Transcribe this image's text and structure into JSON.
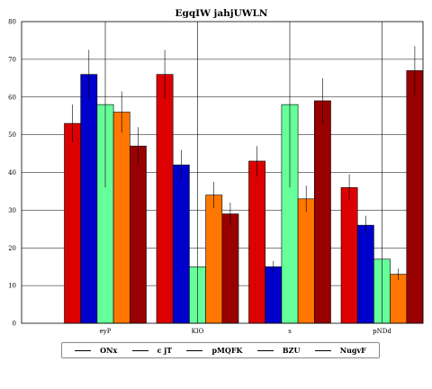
{
  "chart_data": {
    "type": "bar",
    "title": "EgqIW jahjUWLN",
    "xlabel": "",
    "ylabel": "",
    "categories": [
      "eyP",
      "KIO",
      "s",
      "pNDd"
    ],
    "ylim": [
      0,
      80
    ],
    "yticks": [
      0,
      10,
      20,
      30,
      40,
      50,
      60,
      70,
      80
    ],
    "grid": true,
    "legend_position": "bottom",
    "series": [
      {
        "name": "ONx",
        "color": "#dd0000",
        "values": [
          53,
          66,
          43,
          36
        ],
        "errors": [
          5,
          6.5,
          4,
          3.5
        ]
      },
      {
        "name": "c jT",
        "color": "#0000cc",
        "values": [
          66,
          42,
          15,
          26
        ],
        "errors": [
          6.5,
          4,
          1.5,
          2.5
        ]
      },
      {
        "name": "pMQFK",
        "color": "#66ff99",
        "values": [
          58,
          15,
          58,
          17
        ],
        "errors": [
          22,
          80,
          22,
          80
        ]
      },
      {
        "name": "BZU",
        "color": "#ff7700",
        "values": [
          56,
          34,
          33,
          13
        ],
        "errors": [
          5.5,
          3.5,
          3.5,
          1.5
        ]
      },
      {
        "name": "NugvF",
        "color": "#990000",
        "values": [
          47,
          29,
          59,
          67
        ],
        "errors": [
          5,
          3,
          6,
          6.5
        ]
      }
    ]
  }
}
